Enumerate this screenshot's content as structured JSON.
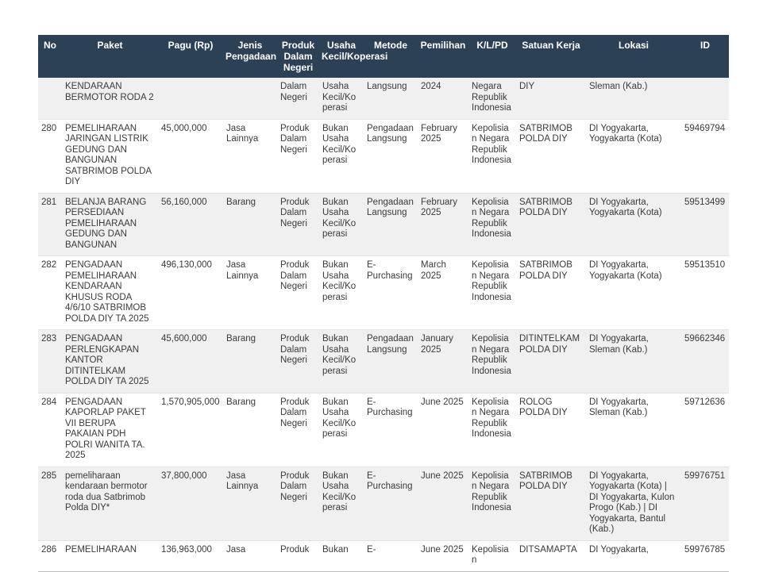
{
  "colors": {
    "header_bg": "#2d4156",
    "header_text": "#ffffff",
    "row_stripe": "#f0f0f0",
    "body_text": "#3a3a3a"
  },
  "table": {
    "columns": [
      {
        "key": "no",
        "label": "No"
      },
      {
        "key": "paket",
        "label": "Paket"
      },
      {
        "key": "pagu",
        "label": "Pagu (Rp)"
      },
      {
        "key": "jenis",
        "label": "Jenis Pengadaan"
      },
      {
        "key": "produk",
        "label": "Produk Dalam Negeri"
      },
      {
        "key": "usaha",
        "label": "Usaha Kecil/Koperasi"
      },
      {
        "key": "metode",
        "label": "Metode"
      },
      {
        "key": "pemilihan",
        "label": "Pemilihan"
      },
      {
        "key": "klpd",
        "label": "K/L/PD"
      },
      {
        "key": "satuan",
        "label": "Satuan Kerja"
      },
      {
        "key": "lokasi",
        "label": "Lokasi"
      },
      {
        "key": "id",
        "label": "ID"
      }
    ],
    "rows": [
      {
        "no": "",
        "paket": "KENDARAAN BERMOTOR RODA 2",
        "pagu": "",
        "jenis": "",
        "produk": "Dalam Negeri",
        "usaha": "Usaha Kecil/Koperasi",
        "metode": "Langsung",
        "pemilihan": "2024",
        "klpd": "Negara Republik Indonesia",
        "satuan": "DIY",
        "lokasi": "Sleman (Kab.)",
        "id": ""
      },
      {
        "no": "280",
        "paket": "PEMELIHARAAN JARINGAN LISTRIK GEDUNG DAN BANGUNAN SATBRIMOB POLDA DIY",
        "pagu": "45,000,000",
        "jenis": "Jasa Lainnya",
        "produk": "Produk Dalam Negeri",
        "usaha": "Bukan Usaha Kecil/Koperasi",
        "metode": "Pengadaan Langsung",
        "pemilihan": "February 2025",
        "klpd": "Kepolisian Negara Republik Indonesia",
        "satuan": "SATBRIMOB POLDA DIY",
        "lokasi": "DI Yogyakarta, Yogyakarta (Kota)",
        "id": "59469794"
      },
      {
        "no": "281",
        "paket": "BELANJA BARANG PERSEDIAAN PEMELIHARAAN GEDUNG DAN BANGUNAN",
        "pagu": "56,160,000",
        "jenis": "Barang",
        "produk": "Produk Dalam Negeri",
        "usaha": "Bukan Usaha Kecil/Koperasi",
        "metode": "Pengadaan Langsung",
        "pemilihan": "February 2025",
        "klpd": "Kepolisian Negara Republik Indonesia",
        "satuan": "SATBRIMOB POLDA DIY",
        "lokasi": "DI Yogyakarta, Yogyakarta (Kota)",
        "id": "59513499"
      },
      {
        "no": "282",
        "paket": "PENGADAAN PEMELIHARAAN KENDARAAN KHUSUS RODA 4/6/10 SATBRIMOB POLDA DIY TA 2025",
        "pagu": "496,130,000",
        "jenis": "Jasa Lainnya",
        "produk": "Produk Dalam Negeri",
        "usaha": "Bukan Usaha Kecil/Koperasi",
        "metode": "E-Purchasing",
        "pemilihan": "March 2025",
        "klpd": "Kepolisian Negara Republik Indonesia",
        "satuan": "SATBRIMOB POLDA DIY",
        "lokasi": "DI Yogyakarta, Yogyakarta (Kota)",
        "id": "59513510"
      },
      {
        "no": "283",
        "paket": "PENGADAAN PERLENGKAPAN KANTOR DITINTELKAM POLDA DIY TA 2025",
        "pagu": "45,600,000",
        "jenis": "Barang",
        "produk": "Produk Dalam Negeri",
        "usaha": "Bukan Usaha Kecil/Koperasi",
        "metode": "Pengadaan Langsung",
        "pemilihan": "January 2025",
        "klpd": "Kepolisian Negara Republik Indonesia",
        "satuan": "DITINTELKAM POLDA DIY",
        "lokasi": "DI Yogyakarta, Sleman (Kab.)",
        "id": "59662346"
      },
      {
        "no": "284",
        "paket": "PENGADAAN KAPORLAP PAKET VII BERUPA PAKAIAN PDH POLRI WANITA TA. 2025",
        "pagu": "1,570,905,000",
        "jenis": "Barang",
        "produk": "Produk Dalam Negeri",
        "usaha": "Bukan Usaha Kecil/Koperasi",
        "metode": "E-Purchasing",
        "pemilihan": "June 2025",
        "klpd": "Kepolisian Negara Republik Indonesia",
        "satuan": "ROLOG POLDA DIY",
        "lokasi": "DI Yogyakarta, Sleman (Kab.)",
        "id": "59712636"
      },
      {
        "no": "285",
        "paket": "pemeliharaan kendaraan bermotor roda dua Satbrimob Polda DIY*",
        "pagu": "37,800,000",
        "jenis": "Jasa Lainnya",
        "produk": "Produk Dalam Negeri",
        "usaha": "Bukan Usaha Kecil/Koperasi",
        "metode": "E-Purchasing",
        "pemilihan": "June 2025",
        "klpd": "Kepolisian Negara Republik Indonesia",
        "satuan": "SATBRIMOB POLDA DIY",
        "lokasi": "DI Yogyakarta, Yogyakarta (Kota) | DI Yogyakarta, Kulon Progo (Kab.) | DI Yogyakarta, Bantul (Kab.)",
        "id": "59976751"
      },
      {
        "no": "286",
        "paket": "PEMELIHARAAN",
        "pagu": "136,963,000",
        "jenis": "Jasa",
        "produk": "Produk",
        "usaha": "Bukan",
        "metode": "E-",
        "pemilihan": "June 2025",
        "klpd": "Kepolisian",
        "satuan": "DITSAMAPTA",
        "lokasi": "DI Yogyakarta,",
        "id": "59976785"
      }
    ]
  }
}
